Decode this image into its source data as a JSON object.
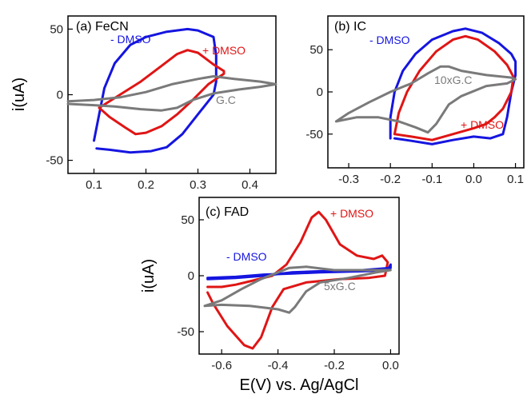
{
  "chart_data": [
    {
      "type": "line",
      "panel": "a",
      "title": "(a) FeCN",
      "xlabel": "",
      "ylabel": "i(uA)",
      "xlim": [
        0.05,
        0.45
      ],
      "ylim": [
        -60,
        60
      ],
      "xticks": [
        0.1,
        0.2,
        0.3,
        0.4
      ],
      "xtick_labels": [
        "0.1",
        "0.2",
        "0.3",
        "0.4"
      ],
      "yticks": [
        -50,
        0,
        50
      ],
      "ytick_labels": [
        "-50",
        "0",
        "50"
      ],
      "grid": false,
      "annotations": [
        {
          "text": "- DMSO",
          "color": "#1515e0"
        },
        {
          "text": "+ DMSO",
          "color": "#e01515"
        },
        {
          "text": "G.C",
          "color": "#7a7a7a"
        }
      ],
      "series": [
        {
          "color": "#1515e0",
          "points": [
            [
              0.1,
              -35
            ],
            [
              0.11,
              -15
            ],
            [
              0.12,
              5
            ],
            [
              0.14,
              24
            ],
            [
              0.17,
              38
            ],
            [
              0.2,
              44
            ],
            [
              0.24,
              48
            ],
            [
              0.28,
              50
            ],
            [
              0.3,
              49
            ],
            [
              0.33,
              44
            ],
            [
              0.335,
              30
            ],
            [
              0.335,
              10
            ],
            [
              0.33,
              0
            ],
            [
              0.3,
              -15
            ],
            [
              0.27,
              -30
            ],
            [
              0.24,
              -40
            ],
            [
              0.21,
              -43
            ],
            [
              0.17,
              -44
            ],
            [
              0.13,
              -42
            ],
            [
              0.105,
              -41
            ]
          ]
        },
        {
          "color": "#e01515",
          "points": [
            [
              0.11,
              -10
            ],
            [
              0.15,
              0
            ],
            [
              0.19,
              10
            ],
            [
              0.23,
              22
            ],
            [
              0.26,
              31
            ],
            [
              0.28,
              34
            ],
            [
              0.3,
              32
            ],
            [
              0.33,
              23
            ],
            [
              0.35,
              18
            ],
            [
              0.35,
              16
            ],
            [
              0.32,
              8
            ],
            [
              0.29,
              -4
            ],
            [
              0.26,
              -15
            ],
            [
              0.23,
              -24
            ],
            [
              0.2,
              -29
            ],
            [
              0.18,
              -30
            ],
            [
              0.16,
              -25
            ],
            [
              0.13,
              -17
            ],
            [
              0.11,
              -10
            ]
          ]
        },
        {
          "color": "#7a7a7a",
          "points": [
            [
              0.05,
              -5
            ],
            [
              0.1,
              -4
            ],
            [
              0.15,
              -2
            ],
            [
              0.2,
              2
            ],
            [
              0.25,
              8
            ],
            [
              0.3,
              12
            ],
            [
              0.33,
              14
            ],
            [
              0.37,
              12
            ],
            [
              0.42,
              10
            ],
            [
              0.45,
              8
            ],
            [
              0.42,
              6
            ],
            [
              0.38,
              4
            ],
            [
              0.33,
              1
            ],
            [
              0.29,
              -4
            ],
            [
              0.26,
              -10
            ],
            [
              0.23,
              -12
            ],
            [
              0.19,
              -11
            ],
            [
              0.14,
              -9
            ],
            [
              0.1,
              -8
            ],
            [
              0.05,
              -7
            ]
          ]
        }
      ]
    },
    {
      "type": "line",
      "panel": "b",
      "title": "(b) IC",
      "xlabel": "",
      "ylabel": "",
      "xlim": [
        -0.35,
        0.12
      ],
      "ylim": [
        -90,
        90
      ],
      "xticks": [
        -0.3,
        -0.2,
        -0.1,
        0.0,
        0.1
      ],
      "xtick_labels": [
        "-0.3",
        "-0.2",
        "-0.1",
        "0.0",
        "0.1"
      ],
      "yticks": [
        -50,
        0,
        50
      ],
      "ytick_labels": [
        "-50",
        "0",
        "50"
      ],
      "grid": false,
      "annotations": [
        {
          "text": "- DMSO",
          "color": "#1515e0"
        },
        {
          "text": "10xG.C",
          "color": "#7a7a7a"
        },
        {
          "text": "+ DMSO",
          "color": "#e01515"
        }
      ],
      "series": [
        {
          "color": "#1515e0",
          "points": [
            [
              -0.2,
              -55
            ],
            [
              -0.2,
              -30
            ],
            [
              -0.19,
              0
            ],
            [
              -0.17,
              25
            ],
            [
              -0.14,
              45
            ],
            [
              -0.1,
              62
            ],
            [
              -0.05,
              72
            ],
            [
              -0.02,
              75
            ],
            [
              0.02,
              70
            ],
            [
              0.06,
              58
            ],
            [
              0.09,
              45
            ],
            [
              0.1,
              36
            ],
            [
              0.1,
              20
            ],
            [
              0.09,
              0
            ],
            [
              0.08,
              -30
            ],
            [
              0.07,
              -50
            ],
            [
              0.04,
              -55
            ],
            [
              0.0,
              -53
            ],
            [
              -0.05,
              -57
            ],
            [
              -0.1,
              -62
            ],
            [
              -0.15,
              -58
            ],
            [
              -0.19,
              -55
            ]
          ]
        },
        {
          "color": "#e01515",
          "points": [
            [
              -0.19,
              -50
            ],
            [
              -0.18,
              -25
            ],
            [
              -0.16,
              0
            ],
            [
              -0.13,
              25
            ],
            [
              -0.09,
              48
            ],
            [
              -0.05,
              62
            ],
            [
              -0.02,
              66
            ],
            [
              0.01,
              62
            ],
            [
              0.05,
              48
            ],
            [
              0.08,
              32
            ],
            [
              0.095,
              18
            ],
            [
              0.09,
              0
            ],
            [
              0.07,
              -20
            ],
            [
              0.05,
              -30
            ],
            [
              0.03,
              -38
            ],
            [
              0.0,
              -43
            ],
            [
              -0.05,
              -50
            ],
            [
              -0.1,
              -57
            ],
            [
              -0.15,
              -53
            ],
            [
              -0.19,
              -50
            ]
          ]
        },
        {
          "color": "#7a7a7a",
          "points": [
            [
              -0.33,
              -35
            ],
            [
              -0.3,
              -25
            ],
            [
              -0.25,
              -12
            ],
            [
              -0.2,
              0
            ],
            [
              -0.15,
              10
            ],
            [
              -0.11,
              22
            ],
            [
              -0.08,
              30
            ],
            [
              -0.06,
              30
            ],
            [
              -0.03,
              25
            ],
            [
              0.03,
              20
            ],
            [
              0.09,
              17
            ],
            [
              0.1,
              15
            ],
            [
              0.08,
              10
            ],
            [
              0.03,
              7
            ],
            [
              -0.03,
              -5
            ],
            [
              -0.06,
              -15
            ],
            [
              -0.09,
              -38
            ],
            [
              -0.11,
              -48
            ],
            [
              -0.14,
              -42
            ],
            [
              -0.18,
              -35
            ],
            [
              -0.23,
              -30
            ],
            [
              -0.28,
              -30
            ],
            [
              -0.33,
              -35
            ]
          ]
        }
      ]
    },
    {
      "type": "line",
      "panel": "c",
      "title": "(c) FAD",
      "xlabel": "E(V) vs. Ag/AgCl",
      "ylabel": "i(uA)",
      "xlim": [
        -0.68,
        0.03
      ],
      "ylim": [
        -70,
        70
      ],
      "xticks": [
        -0.6,
        -0.4,
        -0.2,
        0.0
      ],
      "xtick_labels": [
        "-0.6",
        "-0.4",
        "-0.2",
        "0.0"
      ],
      "yticks": [
        -50,
        0,
        50
      ],
      "ytick_labels": [
        "-50",
        "0",
        "50"
      ],
      "grid": false,
      "annotations": [
        {
          "text": "+ DMSO",
          "color": "#e01515"
        },
        {
          "text": "- DMSO",
          "color": "#1515e0"
        },
        {
          "text": "5xG.C",
          "color": "#7a7a7a"
        }
      ],
      "series": [
        {
          "color": "#e01515",
          "points": [
            [
              -0.65,
              -10
            ],
            [
              -0.6,
              -10
            ],
            [
              -0.55,
              -8
            ],
            [
              -0.5,
              -5
            ],
            [
              -0.42,
              0
            ],
            [
              -0.37,
              10
            ],
            [
              -0.32,
              30
            ],
            [
              -0.28,
              52
            ],
            [
              -0.255,
              57
            ],
            [
              -0.23,
              50
            ],
            [
              -0.18,
              28
            ],
            [
              -0.12,
              18
            ],
            [
              -0.06,
              15
            ],
            [
              -0.03,
              18
            ],
            [
              -0.01,
              12
            ],
            [
              -0.02,
              0
            ],
            [
              -0.08,
              -2
            ],
            [
              -0.18,
              -3
            ],
            [
              -0.3,
              -6
            ],
            [
              -0.38,
              -12
            ],
            [
              -0.42,
              -28
            ],
            [
              -0.46,
              -55
            ],
            [
              -0.49,
              -65
            ],
            [
              -0.52,
              -62
            ],
            [
              -0.58,
              -45
            ],
            [
              -0.63,
              -25
            ],
            [
              -0.65,
              -15
            ]
          ]
        },
        {
          "color": "#1515e0",
          "points": [
            [
              -0.65,
              -3
            ],
            [
              -0.55,
              -2
            ],
            [
              -0.45,
              0
            ],
            [
              -0.35,
              3
            ],
            [
              -0.25,
              4
            ],
            [
              -0.1,
              5
            ],
            [
              0.0,
              7
            ],
            [
              0.0,
              10
            ],
            [
              -0.01,
              5
            ],
            [
              -0.1,
              4
            ],
            [
              -0.25,
              3
            ],
            [
              -0.35,
              2
            ],
            [
              -0.45,
              1
            ],
            [
              -0.55,
              -1
            ],
            [
              -0.65,
              -2
            ]
          ]
        },
        {
          "color": "#7a7a7a",
          "points": [
            [
              -0.66,
              -27
            ],
            [
              -0.6,
              -22
            ],
            [
              -0.53,
              -12
            ],
            [
              -0.46,
              -3
            ],
            [
              -0.4,
              3
            ],
            [
              -0.36,
              7
            ],
            [
              -0.3,
              8
            ],
            [
              -0.2,
              5
            ],
            [
              -0.1,
              5
            ],
            [
              0.0,
              5
            ],
            [
              -0.05,
              3
            ],
            [
              -0.15,
              -2
            ],
            [
              -0.25,
              -6
            ],
            [
              -0.3,
              -14
            ],
            [
              -0.34,
              -28
            ],
            [
              -0.36,
              -33
            ],
            [
              -0.4,
              -30
            ],
            [
              -0.5,
              -27
            ],
            [
              -0.6,
              -26
            ],
            [
              -0.66,
              -27
            ]
          ]
        }
      ]
    }
  ]
}
